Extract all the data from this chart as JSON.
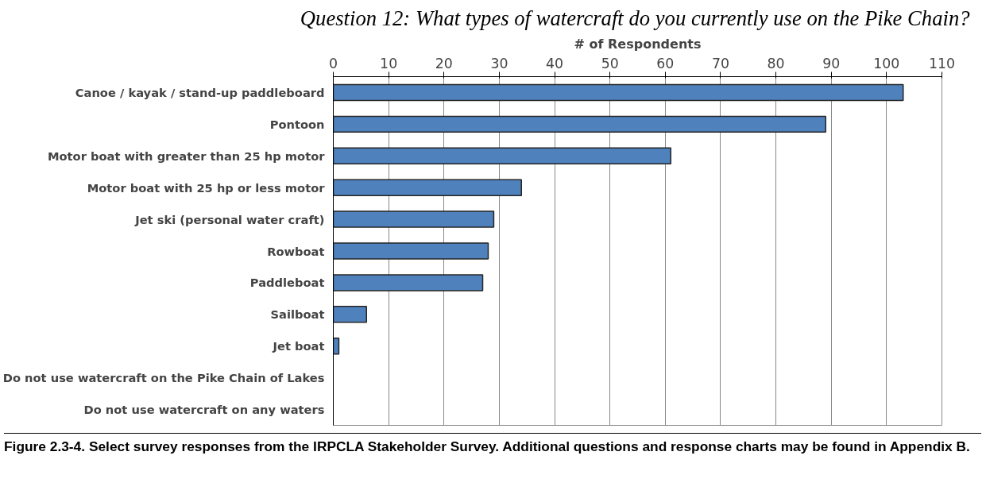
{
  "chart_data": {
    "type": "bar",
    "orientation": "horizontal",
    "title": "Question 12:  What types of watercraft do you currently use on the Pike Chain?",
    "xlabel": "# of Respondents",
    "categories": [
      "Canoe / kayak / stand-up paddleboard",
      "Pontoon",
      "Motor boat with greater than 25 hp motor",
      "Motor boat with 25 hp or less motor",
      "Jet ski (personal water craft)",
      "Rowboat",
      "Paddleboat",
      "Sailboat",
      "Jet boat",
      "Do not use watercraft on the Pike Chain of Lakes",
      "Do not use watercraft on any waters"
    ],
    "values": [
      103,
      89,
      61,
      34,
      29,
      28,
      27,
      6,
      1,
      0,
      0
    ],
    "color": "#4f81bd",
    "xlim": [
      0,
      110
    ],
    "xticks": [
      0,
      10,
      20,
      30,
      40,
      50,
      60,
      70,
      80,
      90,
      100,
      110
    ],
    "grid": "x",
    "annotations": [
      "Figure 2.3-4.  Select survey responses from the IRPCLA Stakeholder Survey.    Additional questions and response charts may be found in Appendix B."
    ]
  }
}
